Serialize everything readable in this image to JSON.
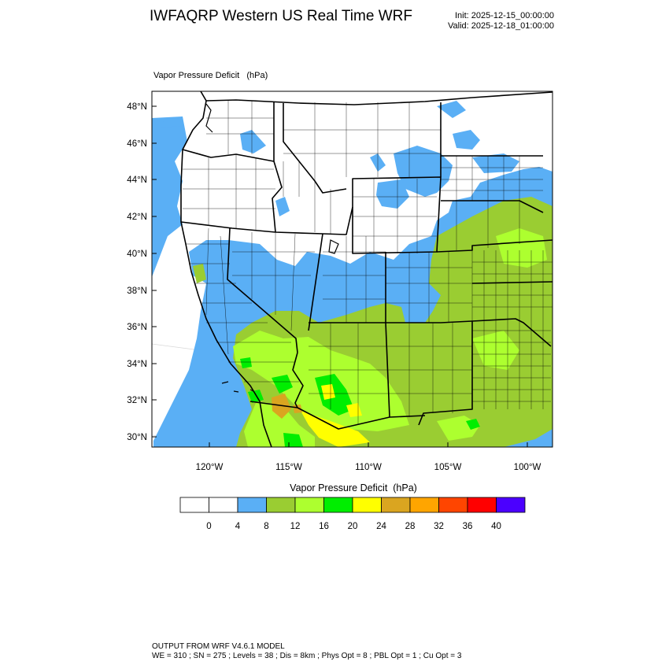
{
  "header": {
    "title": "IWFAQRP Western US Real Time WRF",
    "init": "Init: 2025-12-15_00:00:00",
    "valid": "Valid: 2025-12-18_01:00:00"
  },
  "map": {
    "caption": "Vapor Pressure Deficit   (hPa)",
    "lat_labels": [
      "48°N",
      "46°N",
      "44°N",
      "42°N",
      "40°N",
      "38°N",
      "36°N",
      "34°N",
      "32°N",
      "30°N"
    ],
    "lon_labels": [
      "120°W",
      "115°W",
      "110°W",
      "105°W",
      "100°W"
    ],
    "region": "Western United States"
  },
  "colorbar": {
    "title": "Vapor Pressure Deficit  (hPa)",
    "tick_labels": [
      "0",
      "4",
      "8",
      "12",
      "16",
      "20",
      "24",
      "28",
      "32",
      "36",
      "40"
    ],
    "colors": [
      "#ffffff",
      "#ffffff",
      "#5aaff5",
      "#9acd32",
      "#adff2f",
      "#00ee00",
      "#ffff00",
      "#daa520",
      "#ffa500",
      "#ff4500",
      "#ff0000",
      "#4b00ff"
    ]
  },
  "footer": {
    "line1": "OUTPUT FROM WRF V4.6.1 MODEL",
    "line2": "WE = 310 ; SN = 275 ; Levels = 38 ; Dis = 8km ; Phys Opt = 8 ; PBL Opt = 1 ; Cu Opt = 3"
  }
}
